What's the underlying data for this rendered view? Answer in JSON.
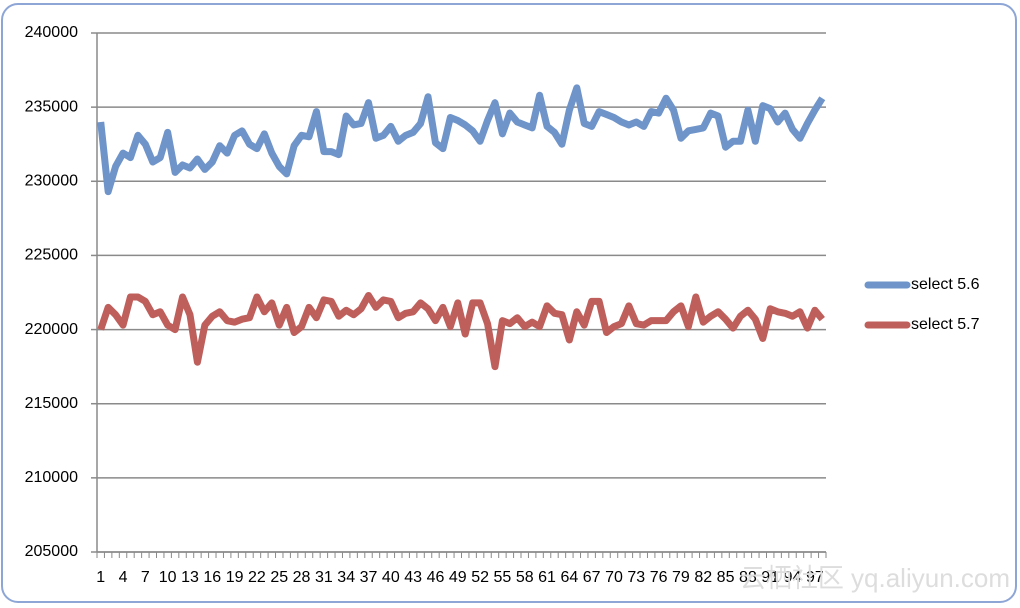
{
  "chart_data": {
    "type": "line",
    "categories": [
      "1",
      null,
      null,
      "4",
      null,
      null,
      "7",
      null,
      null,
      "10",
      null,
      null,
      "13",
      null,
      null,
      "16",
      null,
      null,
      "19",
      null,
      null,
      "22",
      null,
      null,
      "25",
      null,
      null,
      "28",
      null,
      null,
      "31",
      null,
      null,
      "34",
      null,
      null,
      "37",
      null,
      null,
      "40",
      null,
      null,
      "43",
      null,
      null,
      "46",
      null,
      null,
      "49",
      null,
      null,
      "52",
      null,
      null,
      "55",
      null,
      null,
      "58",
      null,
      null,
      "61",
      null,
      null,
      "64",
      null,
      null,
      "67",
      null,
      null,
      "70",
      null,
      null,
      "73",
      null,
      null,
      "76",
      null,
      null,
      "79",
      null,
      null,
      "82",
      null,
      null,
      "85",
      null,
      null,
      "88",
      null,
      null,
      "91",
      null,
      null,
      "94",
      null,
      null,
      "97",
      null
    ],
    "series": [
      {
        "name": "select 5.6",
        "color": "#6f94c9",
        "values": [
          234000,
          229300,
          231000,
          231900,
          231600,
          233100,
          232500,
          231300,
          231600,
          233300,
          230600,
          231100,
          230900,
          231500,
          230800,
          231300,
          232400,
          231900,
          233100,
          233400,
          232500,
          232200,
          233200,
          231900,
          231000,
          230500,
          232400,
          233100,
          233000,
          234700,
          232000,
          232000,
          231800,
          234400,
          233800,
          233900,
          235300,
          232900,
          233100,
          233700,
          232700,
          233100,
          233300,
          233900,
          235700,
          232600,
          232200,
          234300,
          234100,
          233800,
          233400,
          232700,
          234100,
          235300,
          233200,
          234600,
          234000,
          233800,
          233600,
          235800,
          233700,
          233300,
          232500,
          234800,
          236300,
          233900,
          233700,
          234700,
          234500,
          234300,
          234000,
          233800,
          234000,
          233700,
          234700,
          234600,
          235600,
          234800,
          232900,
          233400,
          233500,
          233600,
          234600,
          234400,
          232300,
          232700,
          232700,
          234800,
          232700,
          235100,
          234900,
          234000,
          234600,
          233500,
          232900,
          233900,
          234800,
          235600
        ]
      },
      {
        "name": "select 5.7",
        "color": "#bf5f5c",
        "values": [
          220000,
          221500,
          221000,
          220300,
          222200,
          222200,
          221900,
          221000,
          221200,
          220300,
          220000,
          222200,
          221000,
          217800,
          220300,
          220900,
          221200,
          220600,
          220500,
          220700,
          220800,
          222200,
          221200,
          221800,
          220300,
          221500,
          219800,
          220200,
          221500,
          220800,
          222000,
          221900,
          220900,
          221300,
          221000,
          221400,
          222300,
          221500,
          222000,
          221900,
          220800,
          221100,
          221200,
          221800,
          221400,
          220600,
          221500,
          220200,
          221800,
          219700,
          221800,
          221800,
          220400,
          217500,
          220600,
          220400,
          220800,
          220200,
          220500,
          220200,
          221600,
          221100,
          221000,
          219300,
          221200,
          220300,
          221900,
          221900,
          219800,
          220200,
          220400,
          221600,
          220400,
          220300,
          220600,
          220600,
          220600,
          221200,
          221600,
          220200,
          222200,
          220500,
          220900,
          221200,
          220700,
          220100,
          220900,
          221300,
          220700,
          219400,
          221400,
          221200,
          221100,
          220900,
          221200,
          220100,
          221300,
          220700
        ]
      }
    ],
    "ylim": [
      205000,
      240000
    ],
    "yticks": [
      205000,
      210000,
      215000,
      220000,
      225000,
      230000,
      235000,
      240000
    ],
    "grid": true,
    "legend": "right",
    "watermark": "云栖社区 yq.aliyun.com"
  }
}
